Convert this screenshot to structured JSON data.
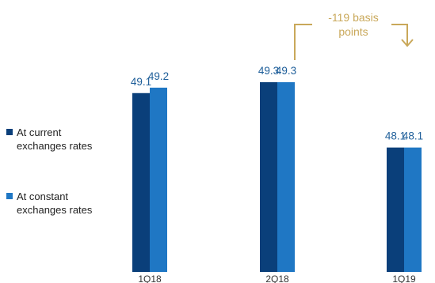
{
  "chart_data": {
    "type": "bar",
    "title": "",
    "xlabel": "",
    "ylabel": "",
    "categories": [
      "1Q18",
      "2Q18",
      "1Q19"
    ],
    "series": [
      {
        "name": "At current exchanges rates",
        "values": [
          49.1,
          49.3,
          48.1
        ],
        "labels": [
          "49.1",
          "49.3",
          "48.1"
        ],
        "color": "#0a3f7a"
      },
      {
        "name": "At constant exchanges rates",
        "values": [
          49.2,
          49.3,
          48.1
        ],
        "labels": [
          "49.2",
          "49.3",
          "48.1"
        ],
        "color": "#1f77c4"
      }
    ],
    "ylim": [
      0,
      60
    ],
    "grid": false,
    "legend_placement": "left",
    "legend": [
      {
        "lines": [
          "At current",
          "exchanges rates"
        ],
        "color": "#0a3f7a"
      },
      {
        "lines": [
          "At constant",
          "exchanges rates"
        ],
        "color": "#1f77c4"
      }
    ],
    "annotation": {
      "lines": [
        "-119 basis",
        "points"
      ],
      "color": "#c9a85a",
      "from_category": "2Q18",
      "to_category": "1Q19"
    },
    "value_label_color": "#1f5f9a"
  }
}
